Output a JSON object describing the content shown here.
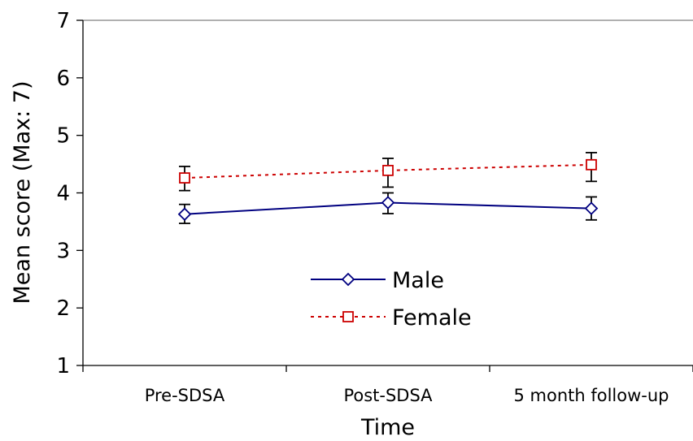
{
  "chart_data": {
    "type": "line",
    "title": "",
    "xlabel": "Time",
    "ylabel": "Mean score (Max: 7)",
    "ylim": [
      1,
      7
    ],
    "yticks": [
      1,
      2,
      3,
      4,
      5,
      6,
      7
    ],
    "categories": [
      "Pre-SDSA",
      "Post-SDSA",
      "5 month follow-up"
    ],
    "grid": false,
    "legend_position": "inside-lower-center",
    "series": [
      {
        "name": "Male",
        "values": [
          3.63,
          3.83,
          3.73
        ],
        "error_low": [
          3.47,
          3.64,
          3.53
        ],
        "error_high": [
          3.8,
          4.0,
          3.93
        ],
        "color": "#000080",
        "line_style": "solid",
        "marker": "diamond"
      },
      {
        "name": "Female",
        "values": [
          4.26,
          4.39,
          4.49
        ],
        "error_low": [
          4.04,
          4.1,
          4.2
        ],
        "error_high": [
          4.46,
          4.6,
          4.7
        ],
        "color": "#cc0000",
        "line_style": "dotted",
        "marker": "square"
      }
    ]
  }
}
